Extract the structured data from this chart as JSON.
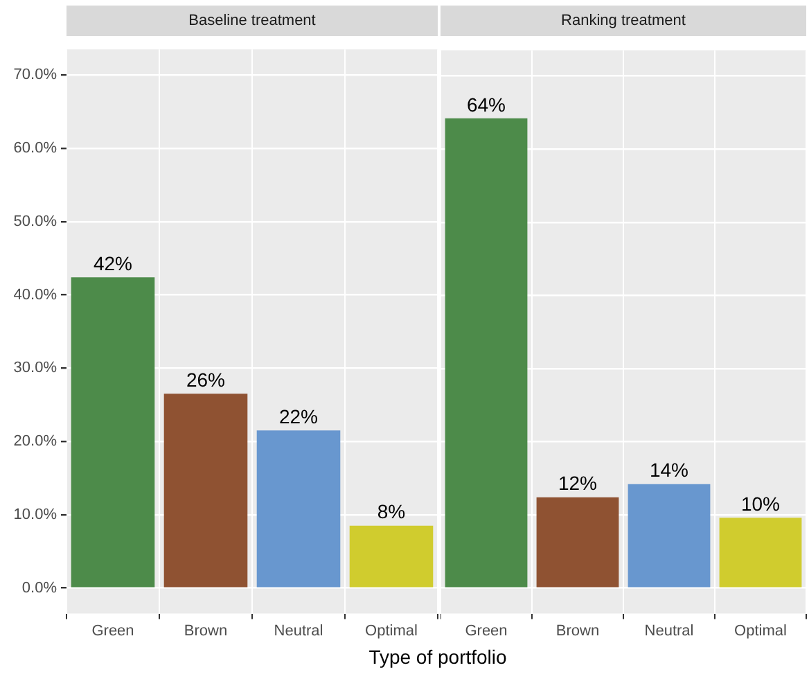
{
  "chart_data": [
    {
      "type": "bar",
      "title": "Baseline treatment",
      "xlabel": "Type of portfolio",
      "categories": [
        "Green",
        "Brown",
        "Neutral",
        "Optimal"
      ],
      "values": [
        42.4,
        26.5,
        21.5,
        8.5
      ],
      "colors": [
        "#4d8b4a",
        "#8f5232",
        "#6897cf",
        "#d0cc2e"
      ],
      "value_labels": [
        "42%",
        "26%",
        "22%",
        "8%"
      ],
      "ylim": [
        -3.5,
        73.5
      ],
      "yticks": [
        {
          "value": 0,
          "label": "0.0%"
        },
        {
          "value": 10,
          "label": "10.0%"
        },
        {
          "value": 20,
          "label": "20.0%"
        },
        {
          "value": 30,
          "label": "30.0%"
        },
        {
          "value": 40,
          "label": "40.0%"
        },
        {
          "value": 50,
          "label": "50.0%"
        },
        {
          "value": 60,
          "label": "60.0%"
        },
        {
          "value": 70,
          "label": "70.0%"
        }
      ],
      "grid": true
    },
    {
      "type": "bar",
      "title": "Ranking treatment",
      "categories": [
        "Green",
        "Brown",
        "Neutral",
        "Optimal"
      ],
      "values": [
        64.2,
        12.4,
        14.2,
        9.6
      ],
      "colors": [
        "#4d8b4a",
        "#8f5232",
        "#6897cf",
        "#d0cc2e"
      ],
      "value_labels": [
        "64%",
        "12%",
        "14%",
        "10%"
      ],
      "ylim": [
        -3.5,
        73.5
      ],
      "yticks": [
        0,
        10,
        20,
        30,
        40,
        50,
        60,
        70
      ],
      "grid": true,
      "tick_labels": "x"
    }
  ]
}
